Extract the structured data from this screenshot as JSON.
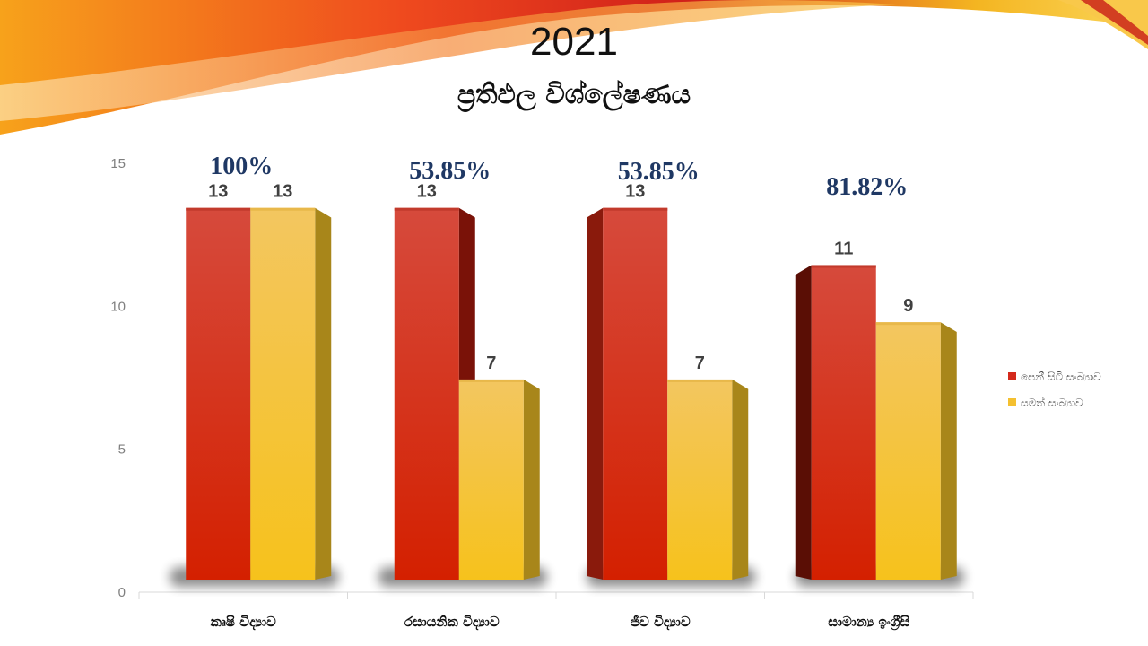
{
  "header": {
    "title": "2021",
    "subtitle": "ප්‍රතිඵල විශ්ලේෂණය"
  },
  "colors": {
    "series1": "#d42a1c",
    "series2": "#f4c030",
    "percent": "#1f3864"
  },
  "chart_data": {
    "type": "bar",
    "categories": [
      "කෘෂි විද්‍යාව",
      "රසායනික විද්‍යාව",
      "ජීව විද්‍යාව",
      "සාමාන්‍ය ඉංග්‍රීසි"
    ],
    "series": [
      {
        "name": "පෙනී සිටි සංඛ්‍යාව",
        "values": [
          13,
          13,
          13,
          11
        ]
      },
      {
        "name": "සමත් සංඛ්‍යාව",
        "values": [
          13,
          7,
          7,
          9
        ]
      }
    ],
    "percentages": [
      "100%",
      "53.85%",
      "53.85%",
      "81.82%"
    ],
    "ylim": [
      0,
      15
    ],
    "yticks": [
      0,
      5,
      10,
      15
    ],
    "legend_position": "right",
    "grid": false
  }
}
